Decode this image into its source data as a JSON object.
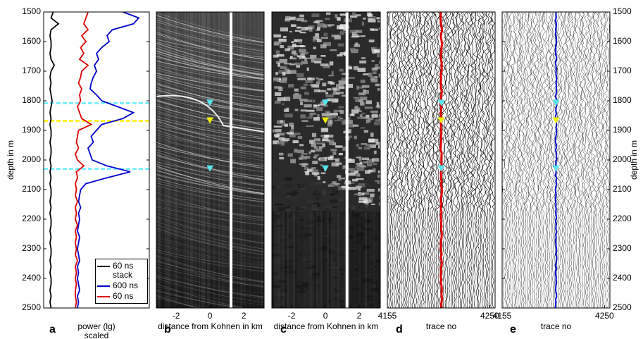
{
  "chart_data": [
    {
      "type": "line",
      "panel_label": "a",
      "ylabel": "depth in m",
      "xlabel": "power (lg) scaled",
      "ylim": [
        1500,
        2500
      ],
      "yticks": [
        1500,
        1600,
        1700,
        1800,
        1900,
        2000,
        2100,
        2200,
        2300,
        2400,
        2500
      ],
      "xlim": [
        0,
        1
      ],
      "y": [
        1500,
        1520,
        1540,
        1560,
        1580,
        1600,
        1620,
        1640,
        1660,
        1680,
        1700,
        1720,
        1740,
        1760,
        1780,
        1800,
        1820,
        1840,
        1860,
        1880,
        1900,
        1920,
        1940,
        1960,
        1980,
        2000,
        2020,
        2040,
        2060,
        2080,
        2100,
        2120,
        2140,
        2160,
        2180,
        2200,
        2220,
        2240,
        2260,
        2280,
        2300,
        2320,
        2340,
        2360,
        2380,
        2400,
        2420,
        2440,
        2460,
        2480,
        2500
      ],
      "series": [
        {
          "name": "60 ns stack",
          "color": "#000000",
          "values": [
            0.09,
            0.07,
            0.14,
            0.07,
            0.06,
            0.07,
            0.07,
            0.06,
            0.07,
            0.1,
            0.07,
            0.06,
            0.07,
            0.06,
            0.07,
            0.08,
            0.07,
            0.06,
            0.07,
            0.06,
            0.07,
            0.07,
            0.06,
            0.07,
            0.07,
            0.06,
            0.07,
            0.06,
            0.07,
            0.06,
            0.07,
            0.07,
            0.06,
            0.07,
            0.06,
            0.07,
            0.07,
            0.06,
            0.07,
            0.06,
            0.07,
            0.07,
            0.06,
            0.07,
            0.06,
            0.07,
            0.07,
            0.06,
            0.07,
            0.06,
            0.07
          ]
        },
        {
          "name": "600 ns",
          "color": "#0000cc",
          "values": [
            0.75,
            0.9,
            0.85,
            0.65,
            0.6,
            0.62,
            0.55,
            0.5,
            0.52,
            0.48,
            0.5,
            0.47,
            0.45,
            0.44,
            0.5,
            0.55,
            0.7,
            0.85,
            0.75,
            0.55,
            0.5,
            0.45,
            0.47,
            0.42,
            0.44,
            0.46,
            0.6,
            0.82,
            0.6,
            0.4,
            0.35,
            0.34,
            0.33,
            0.35,
            0.33,
            0.34,
            0.33,
            0.32,
            0.34,
            0.33,
            0.32,
            0.33,
            0.34,
            0.32,
            0.33,
            0.32,
            0.33,
            0.34,
            0.32,
            0.33,
            0.32
          ]
        },
        {
          "name": "60 ns",
          "color": "#dd0000",
          "values": [
            0.42,
            0.4,
            0.38,
            0.42,
            0.36,
            0.4,
            0.35,
            0.38,
            0.34,
            0.42,
            0.36,
            0.35,
            0.33,
            0.36,
            0.34,
            0.35,
            0.32,
            0.34,
            0.36,
            0.45,
            0.33,
            0.32,
            0.31,
            0.33,
            0.3,
            0.32,
            0.38,
            0.31,
            0.32,
            0.3,
            0.31,
            0.3,
            0.32,
            0.3,
            0.31,
            0.3,
            0.32,
            0.3,
            0.31,
            0.3,
            0.31,
            0.3,
            0.32,
            0.3,
            0.31,
            0.3,
            0.31,
            0.3,
            0.3,
            0.31,
            0.3
          ]
        }
      ],
      "hlines": [
        {
          "y": 1808,
          "color": "#66eeff"
        },
        {
          "y": 1868,
          "color": "#ffee00"
        },
        {
          "y": 2030,
          "color": "#66eeff"
        }
      ],
      "legend": "lower right"
    },
    {
      "type": "image",
      "panel_label": "b",
      "xlabel": "distance from Kohnen in km",
      "xlim": [
        -3.17,
        3.2
      ],
      "xticks": [
        -2,
        0,
        2
      ],
      "ylim": [
        1500,
        2500
      ],
      "markers": [
        {
          "x": 0,
          "y": 1808,
          "color": "#55e5ee"
        },
        {
          "x": 0,
          "y": 1868,
          "color": "#eeee00"
        },
        {
          "x": 0,
          "y": 2030,
          "color": "#55e5ee"
        }
      ]
    },
    {
      "type": "image",
      "panel_label": "c",
      "xlabel": "distance from Kohnen in km",
      "xlim": [
        -3.17,
        3.25
      ],
      "xticks": [
        -2,
        0,
        2
      ],
      "ylim": [
        1500,
        2500
      ],
      "markers": [
        {
          "x": 0,
          "y": 1808,
          "color": "#55e5ee"
        },
        {
          "x": 0,
          "y": 1868,
          "color": "#eeee00"
        },
        {
          "x": 0,
          "y": 2030,
          "color": "#55e5ee"
        }
      ]
    },
    {
      "type": "wiggle",
      "panel_label": "d",
      "xlabel": "trace no",
      "xlim": [
        4155,
        4255
      ],
      "xticks": [
        4155,
        4250
      ],
      "ylim": [
        1500,
        2500
      ],
      "highlight": {
        "x": 4205,
        "color": "#e00000"
      },
      "markers": [
        {
          "x": 4205,
          "y": 1808,
          "color": "#55e5ee"
        },
        {
          "x": 4205,
          "y": 1868,
          "color": "#eeee00"
        },
        {
          "x": 4205,
          "y": 2030,
          "color": "#55e5ee"
        }
      ]
    },
    {
      "type": "wiggle",
      "panel_label": "e",
      "xlabel": "trace no",
      "ylabel": "depth in m",
      "xlim": [
        4155,
        4255
      ],
      "xticks": [
        4155,
        4250
      ],
      "ylim": [
        1500,
        2500
      ],
      "yticks": [
        1500,
        1600,
        1700,
        1800,
        1900,
        2000,
        2100,
        2200,
        2300,
        2400,
        2500
      ],
      "highlight": {
        "x": 4205,
        "color": "#0000cc"
      },
      "markers": [
        {
          "x": 4205,
          "y": 1808,
          "color": "#55e5ee"
        },
        {
          "x": 4205,
          "y": 1868,
          "color": "#eeee00"
        },
        {
          "x": 4205,
          "y": 2030,
          "color": "#55e5ee"
        }
      ]
    }
  ]
}
